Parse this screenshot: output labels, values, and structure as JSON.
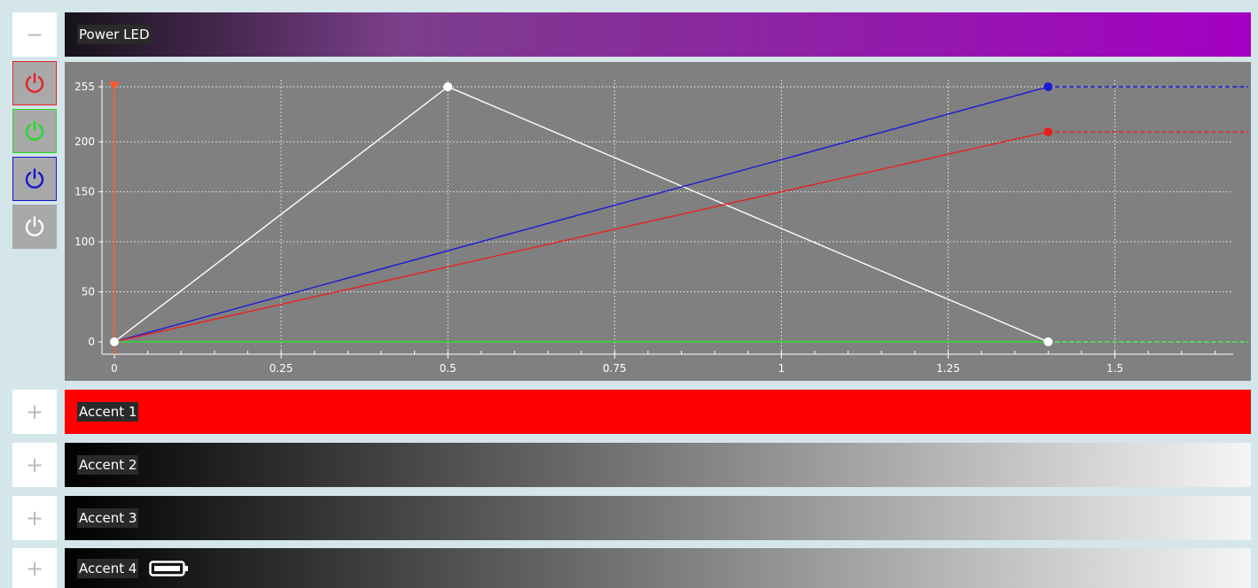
{
  "profile": {
    "name": "Power LED",
    "expanded": true,
    "collapse_symbol": "−",
    "gradient": [
      "#16121a",
      "#7b3f8a",
      "#a400c4"
    ],
    "channels": [
      {
        "name": "red-channel-toggle",
        "icon": "power-icon",
        "color": "#e8202a",
        "border": "#e8202a"
      },
      {
        "name": "green-channel-toggle",
        "icon": "power-icon",
        "color": "#22dd22",
        "border": "#22dd22"
      },
      {
        "name": "blue-channel-toggle",
        "icon": "power-icon",
        "color": "#1515d4",
        "border": "#1515d4"
      },
      {
        "name": "white-channel-toggle",
        "icon": "power-icon",
        "color": "#ffffff",
        "border": "#a9a9a9"
      }
    ]
  },
  "chart_data": {
    "type": "line",
    "xlim": [
      -0.04,
      1.7
    ],
    "ylim": [
      -10,
      262
    ],
    "x_ticks": [
      0,
      0.25,
      0.5,
      0.75,
      1,
      1.25,
      1.5
    ],
    "x_tick_labels": [
      "0",
      "0.25",
      "0.5",
      "0.75",
      "1",
      "1.25",
      "1.5"
    ],
    "y_ticks": [
      0,
      50,
      100,
      150,
      200,
      255
    ],
    "y_tick_labels": [
      "0",
      "50",
      "100",
      "150",
      "200",
      "255"
    ],
    "grid": true,
    "background": "#808080",
    "cursor_x": 0,
    "series": [
      {
        "color": "#ffffff",
        "points": [
          [
            0,
            0
          ],
          [
            0.5,
            255
          ],
          [
            1.4,
            0
          ]
        ],
        "extend_to": 1.7
      },
      {
        "color": "#1a1ad8",
        "points": [
          [
            0,
            0
          ],
          [
            1.4,
            255
          ]
        ],
        "extend_to": 1.7
      },
      {
        "color": "#e82020",
        "points": [
          [
            0,
            0
          ],
          [
            1.4,
            210
          ]
        ],
        "extend_to": 1.7
      },
      {
        "color": "#33dd33",
        "points": [
          [
            0,
            0
          ],
          [
            1.4,
            0
          ]
        ],
        "extend_to": 1.7
      }
    ]
  },
  "accents": [
    {
      "label": "Accent 1",
      "symbol": "+",
      "gradient": [
        "#ff0000",
        "#ff0000"
      ],
      "battery_icon": false
    },
    {
      "label": "Accent 2",
      "symbol": "+",
      "gradient": [
        "#000000",
        "#f5f5f5"
      ],
      "battery_icon": false
    },
    {
      "label": "Accent 3",
      "symbol": "+",
      "gradient": [
        "#000000",
        "#f5f5f5"
      ],
      "battery_icon": false
    },
    {
      "label": "Accent 4",
      "symbol": "+",
      "gradient": [
        "#000000",
        "#f5f5f5"
      ],
      "battery_icon": true
    }
  ]
}
